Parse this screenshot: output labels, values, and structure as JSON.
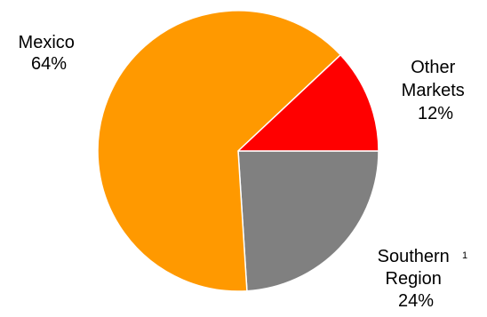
{
  "chart_data": {
    "type": "pie",
    "slices": [
      {
        "label_lines": [
          "Mexico",
          "64%"
        ],
        "value": 64,
        "color": "#FF9900",
        "footnote": ""
      },
      {
        "label_lines": [
          "Other",
          "Markets",
          "12%"
        ],
        "value": 12,
        "color": "#FF0000",
        "footnote": ""
      },
      {
        "label_lines": [
          "Southern",
          "Region",
          "24%"
        ],
        "value": 24,
        "color": "#808080",
        "footnote": "1"
      }
    ],
    "title": "",
    "legend": "none"
  }
}
